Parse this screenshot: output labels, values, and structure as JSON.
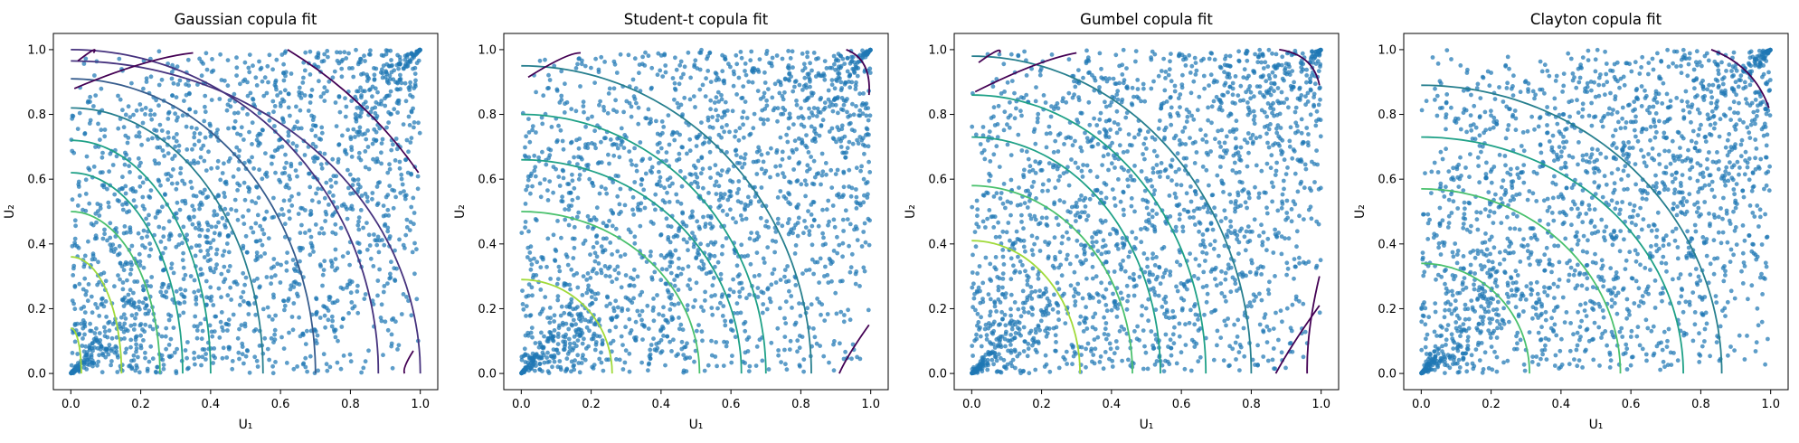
{
  "chart_data": [
    {
      "type": "scatter",
      "title": "Gaussian copula fit",
      "xlabel": "U₁",
      "ylabel": "U₂",
      "xlim": [
        -0.05,
        1.05
      ],
      "ylim": [
        -0.05,
        1.05
      ],
      "xticks": [
        "0.0",
        "0.2",
        "0.4",
        "0.6",
        "0.8",
        "1.0"
      ],
      "yticks": [
        "0.0",
        "0.2",
        "0.4",
        "0.6",
        "0.8",
        "1.0"
      ],
      "grid": false,
      "series": [
        {
          "n_points": 2000,
          "color": "#1f77b4"
        }
      ],
      "contour_levels": [
        0.8,
        1.4,
        2.0,
        2.6,
        3.2,
        3.8,
        4.4,
        5.0,
        5.6
      ],
      "contours": {
        "shape": "elliptic",
        "anchors": [
          [
            0.03,
            0.14,
            1.0
          ],
          [
            0.145,
            0.36,
            0.93
          ],
          [
            0.255,
            0.5,
            0.82
          ],
          [
            0.32,
            0.62,
            0.72
          ],
          [
            0.4,
            0.72,
            0.62
          ],
          [
            0.55,
            0.82,
            0.52
          ],
          [
            0.7,
            0.91,
            0.38
          ],
          [
            0.88,
            1.0,
            0.24
          ],
          [
            1.0,
            0.965,
            0.14
          ]
        ],
        "endpoints": [
          [
            0.065,
            0.99,
            0.02,
            0.965
          ],
          [
            0.35,
            0.99,
            0.01,
            0.88
          ],
          [
            0.98,
            0.07,
            0.955,
            0.0
          ],
          [
            0.995,
            0.62,
            0.62,
            1.0
          ]
        ]
      }
    },
    {
      "type": "scatter",
      "title": "Student-t copula fit",
      "xlabel": "U₁",
      "ylabel": "U₂",
      "xlim": [
        -0.05,
        1.05
      ],
      "ylim": [
        -0.05,
        1.05
      ],
      "xticks": [
        "0.0",
        "0.2",
        "0.4",
        "0.6",
        "0.8",
        "1.0"
      ],
      "yticks": [
        "0.0",
        "0.2",
        "0.4",
        "0.6",
        "0.8",
        "1.0"
      ],
      "grid": false,
      "series": [
        {
          "n_points": 2000,
          "color": "#1f77b4"
        }
      ],
      "contour_levels": [
        0.8,
        1.4,
        2.0,
        2.6,
        3.2,
        3.8,
        4.4,
        5.0
      ],
      "contours": {
        "shape": "elliptic",
        "anchors": [
          [
            0.26,
            0.29,
            0.93
          ],
          [
            0.51,
            0.5,
            0.82
          ],
          [
            0.63,
            0.66,
            0.72
          ],
          [
            0.7,
            0.8,
            0.62
          ],
          [
            0.83,
            0.95,
            0.45
          ]
        ],
        "endpoints": [
          [
            0.17,
            0.99,
            0.02,
            0.915
          ],
          [
            0.995,
            0.15,
            0.91,
            0.0
          ],
          [
            0.995,
            0.86,
            0.93,
            1.0
          ]
        ]
      }
    },
    {
      "type": "scatter",
      "title": "Gumbel copula fit",
      "xlabel": "U₁",
      "ylabel": "U₂",
      "xlim": [
        -0.05,
        1.05
      ],
      "ylim": [
        -0.05,
        1.05
      ],
      "xticks": [
        "0.0",
        "0.2",
        "0.4",
        "0.6",
        "0.8",
        "1.0"
      ],
      "yticks": [
        "0.0",
        "0.2",
        "0.4",
        "0.6",
        "0.8",
        "1.0"
      ],
      "grid": false,
      "series": [
        {
          "n_points": 2000,
          "color": "#1f77b4"
        }
      ],
      "contour_levels": [
        0.8,
        1.4,
        2.0,
        2.6,
        3.2,
        3.8,
        4.4,
        5.0,
        5.6
      ],
      "contours": {
        "shape": "elliptic",
        "anchors": [
          [
            0.31,
            0.41,
            0.93
          ],
          [
            0.46,
            0.58,
            0.82
          ],
          [
            0.54,
            0.73,
            0.72
          ],
          [
            0.67,
            0.86,
            0.62
          ],
          [
            0.8,
            0.98,
            0.45
          ]
        ],
        "endpoints": [
          [
            0.08,
            0.99,
            0.02,
            0.96
          ],
          [
            0.3,
            0.99,
            0.01,
            0.87
          ],
          [
            0.995,
            0.21,
            0.87,
            0.0
          ],
          [
            0.995,
            0.3,
            0.96,
            0.0
          ],
          [
            0.995,
            0.89,
            0.88,
            1.0
          ]
        ]
      }
    },
    {
      "type": "scatter",
      "title": "Clayton copula fit",
      "xlabel": "U₁",
      "ylabel": "U₂",
      "xlim": [
        -0.05,
        1.05
      ],
      "ylim": [
        -0.05,
        1.05
      ],
      "xticks": [
        "0.0",
        "0.2",
        "0.4",
        "0.6",
        "0.8",
        "1.0"
      ],
      "yticks": [
        "0.0",
        "0.2",
        "0.4",
        "0.6",
        "0.8",
        "1.0"
      ],
      "grid": false,
      "series": [
        {
          "n_points": 2000,
          "color": "#1f77b4"
        }
      ],
      "contour_levels": [
        0.8,
        1.4,
        2.0,
        2.6,
        3.2,
        3.8,
        4.4
      ],
      "contours": {
        "shape": "elliptic",
        "anchors": [
          [
            0.31,
            0.34,
            0.9
          ],
          [
            0.57,
            0.57,
            0.82
          ],
          [
            0.75,
            0.73,
            0.62
          ],
          [
            0.86,
            0.89,
            0.5
          ]
        ],
        "endpoints": [
          [
            0.995,
            0.82,
            0.83,
            1.0
          ]
        ]
      }
    }
  ],
  "colors": {
    "points": "#1f77b4",
    "contour_palette": [
      "#440154",
      "#46327e",
      "#365c8d",
      "#277f8e",
      "#1fa187",
      "#4ac16d",
      "#a0da39"
    ]
  }
}
